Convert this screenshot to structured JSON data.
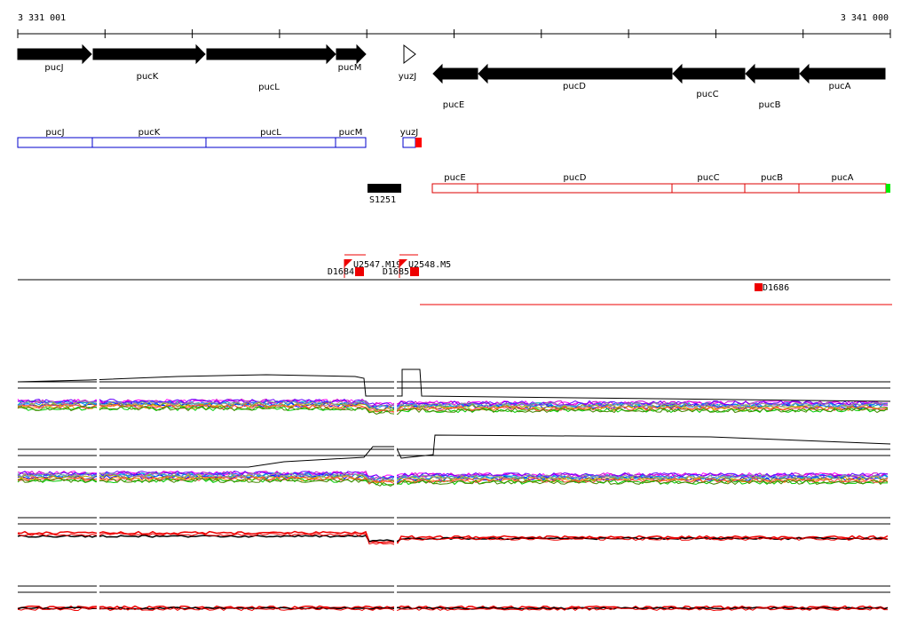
{
  "ruler": {
    "start": "3 331 001",
    "end": "3 341 000"
  },
  "gene_arrows": [
    "pucJ",
    "pucK",
    "pucL",
    "pucM",
    "yuzJ",
    "pucE",
    "pucD",
    "pucC",
    "pucB",
    "pucA"
  ],
  "forward_boxes": [
    "pucJ",
    "pucK",
    "pucL",
    "pucM",
    "yuzJ"
  ],
  "reverse_boxes": [
    "pucE",
    "pucD",
    "pucC",
    "pucB",
    "pucA"
  ],
  "segment": "S1251",
  "probes": [
    "U2547.M19",
    "U2548.M5"
  ],
  "features": [
    "D1684",
    "D1685",
    "D1686"
  ]
}
